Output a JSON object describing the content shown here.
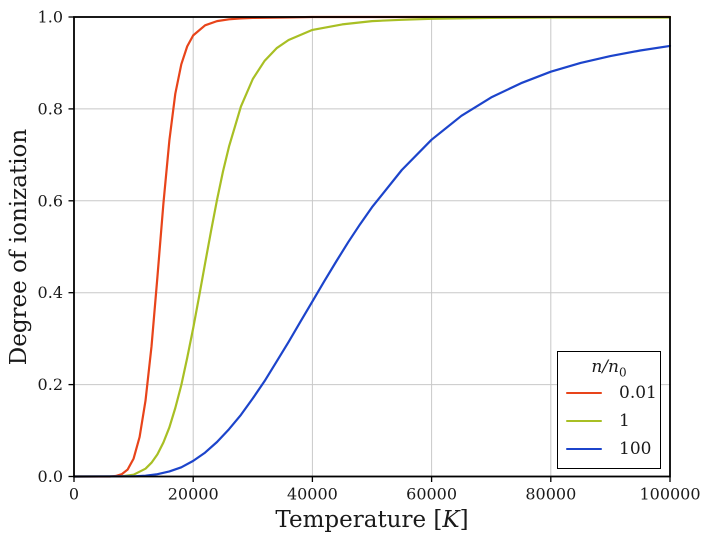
{
  "chart_data": {
    "type": "line",
    "title": "",
    "xlabel": "Temperature",
    "xlabel_bracket_open": " [",
    "xlabel_unit": "K",
    "xlabel_bracket_close": "]",
    "ylabel": "Degree of ionization",
    "xlim": [
      0,
      100000
    ],
    "ylim": [
      0.0,
      1.0
    ],
    "xticks": [
      0,
      20000,
      40000,
      60000,
      80000,
      100000
    ],
    "xtick_labels": [
      "0",
      "20000",
      "40000",
      "60000",
      "80000",
      "100000"
    ],
    "yticks": [
      0.0,
      0.2,
      0.4,
      0.6,
      0.8,
      1.0
    ],
    "ytick_labels": [
      "0.0",
      "0.2",
      "0.4",
      "0.6",
      "0.8",
      "1.0"
    ],
    "grid": true,
    "legend": {
      "title_main": "n/n",
      "title_sub": "0",
      "position": "lower right"
    },
    "colors": {
      "grid": "#c8c8c8",
      "spine": "#000000",
      "text": "#1a1a1a",
      "background": "#ffffff"
    },
    "series": [
      {
        "name": "0.01",
        "color": "#e8441a",
        "x": [
          0,
          6000,
          7000,
          8000,
          9000,
          10000,
          11000,
          12000,
          13000,
          14000,
          15000,
          16000,
          17000,
          18000,
          19000,
          20000,
          22000,
          24000,
          26000,
          28000,
          30000,
          35000,
          40000,
          50000,
          60000,
          80000,
          100000
        ],
        "y": [
          0,
          0.0001,
          0.001,
          0.005,
          0.015,
          0.039,
          0.086,
          0.165,
          0.283,
          0.434,
          0.594,
          0.732,
          0.833,
          0.897,
          0.936,
          0.96,
          0.982,
          0.991,
          0.995,
          0.997,
          0.998,
          0.999,
          1.0,
          1.0,
          1.0,
          1.0,
          1.0
        ]
      },
      {
        "name": "1",
        "color": "#a8bf24",
        "x": [
          0,
          8000,
          10000,
          12000,
          13000,
          14000,
          15000,
          16000,
          17000,
          18000,
          19000,
          20000,
          21000,
          22000,
          23000,
          24000,
          25000,
          26000,
          28000,
          30000,
          32000,
          34000,
          36000,
          40000,
          45000,
          50000,
          55000,
          60000,
          70000,
          80000,
          90000,
          100000
        ],
        "y": [
          0,
          0.0005,
          0.004,
          0.017,
          0.03,
          0.048,
          0.074,
          0.107,
          0.149,
          0.199,
          0.258,
          0.323,
          0.393,
          0.464,
          0.535,
          0.602,
          0.664,
          0.718,
          0.805,
          0.865,
          0.905,
          0.932,
          0.95,
          0.972,
          0.984,
          0.991,
          0.994,
          0.996,
          0.998,
          0.999,
          0.999,
          0.999
        ]
      },
      {
        "name": "100",
        "color": "#1c44cb",
        "x": [
          0,
          10000,
          12000,
          14000,
          16000,
          18000,
          20000,
          22000,
          24000,
          26000,
          28000,
          30000,
          32000,
          34000,
          36000,
          38000,
          40000,
          42000,
          44000,
          46000,
          48000,
          50000,
          55000,
          60000,
          65000,
          70000,
          75000,
          80000,
          85000,
          90000,
          95000,
          100000
        ],
        "y": [
          0,
          0.0004,
          0.0017,
          0.005,
          0.011,
          0.02,
          0.034,
          0.052,
          0.075,
          0.103,
          0.134,
          0.17,
          0.208,
          0.25,
          0.293,
          0.337,
          0.381,
          0.425,
          0.468,
          0.51,
          0.549,
          0.586,
          0.667,
          0.733,
          0.785,
          0.825,
          0.856,
          0.881,
          0.9,
          0.915,
          0.927,
          0.937
        ]
      }
    ]
  }
}
